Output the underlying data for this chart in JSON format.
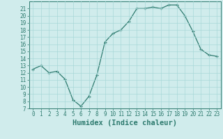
{
  "x": [
    0,
    1,
    2,
    3,
    4,
    5,
    6,
    7,
    8,
    9,
    10,
    11,
    12,
    13,
    14,
    15,
    16,
    17,
    18,
    19,
    20,
    21,
    22,
    23
  ],
  "y": [
    12.5,
    13.0,
    12.0,
    12.2,
    11.1,
    8.2,
    7.3,
    8.7,
    11.7,
    16.3,
    17.5,
    18.0,
    19.2,
    21.0,
    21.0,
    21.2,
    21.0,
    21.5,
    21.5,
    20.0,
    17.8,
    15.3,
    14.5,
    14.3
  ],
  "line_color": "#2d7a6e",
  "bg_color": "#d0ecec",
  "grid_color": "#a8d8d8",
  "xlabel": "Humidex (Indice chaleur)",
  "ylim": [
    7,
    22
  ],
  "xlim": [
    -0.5,
    23.5
  ],
  "yticks": [
    7,
    8,
    9,
    10,
    11,
    12,
    13,
    14,
    15,
    16,
    17,
    18,
    19,
    20,
    21
  ],
  "xticks": [
    0,
    1,
    2,
    3,
    4,
    5,
    6,
    7,
    8,
    9,
    10,
    11,
    12,
    13,
    14,
    15,
    16,
    17,
    18,
    19,
    20,
    21,
    22,
    23
  ],
  "tick_color": "#2d7a6e",
  "label_fontsize": 5.5,
  "xlabel_fontsize": 7.5
}
